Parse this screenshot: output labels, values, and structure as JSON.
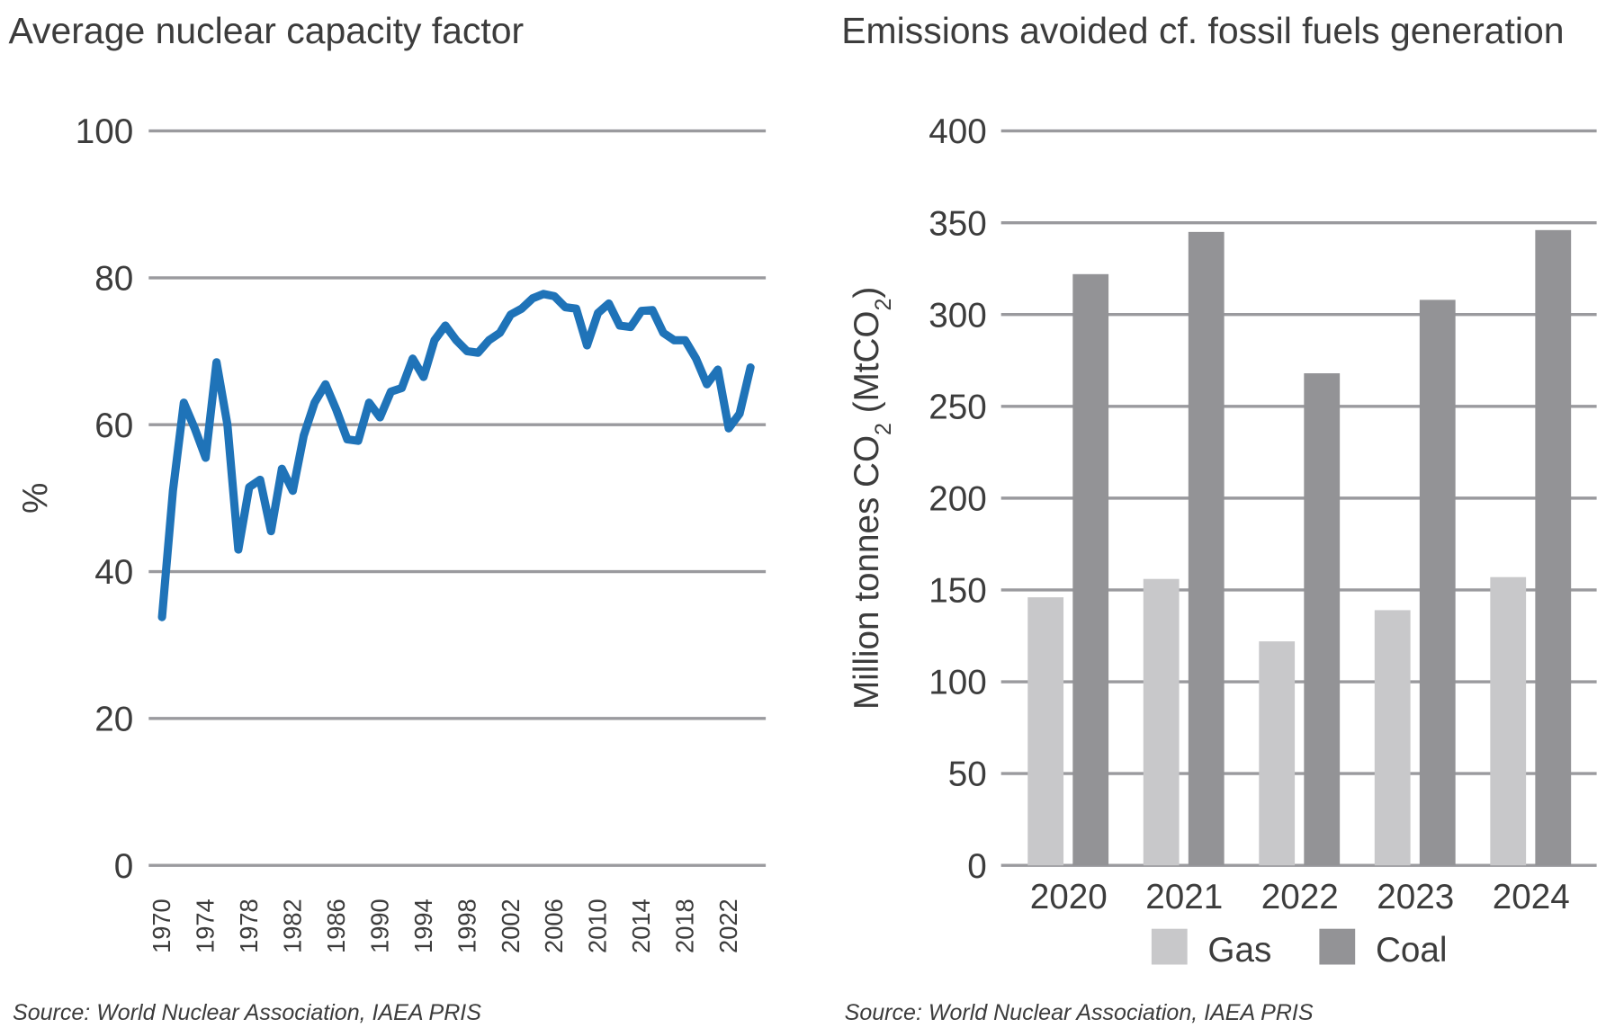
{
  "chart_data": [
    {
      "type": "line",
      "title": "Average nuclear capacity factor",
      "ylabel": "%",
      "xlabel": "",
      "ylim": [
        0,
        100
      ],
      "yticks": [
        0,
        20,
        40,
        60,
        80,
        100
      ],
      "xticks": [
        1970,
        1974,
        1978,
        1982,
        1986,
        1990,
        1994,
        1998,
        2002,
        2006,
        2010,
        2014,
        2018,
        2022
      ],
      "grid": "horizontal",
      "line_color": "#1f73b8",
      "source": "Source: World Nuclear Association, IAEA PRIS",
      "x": [
        1970,
        1971,
        1972,
        1973,
        1974,
        1975,
        1976,
        1977,
        1978,
        1979,
        1980,
        1981,
        1982,
        1983,
        1984,
        1985,
        1986,
        1987,
        1988,
        1989,
        1990,
        1991,
        1992,
        1993,
        1994,
        1995,
        1996,
        1997,
        1998,
        1999,
        2000,
        2001,
        2002,
        2003,
        2004,
        2005,
        2006,
        2007,
        2008,
        2009,
        2010,
        2011,
        2012,
        2013,
        2014,
        2015,
        2016,
        2017,
        2018,
        2019,
        2020,
        2021,
        2022,
        2023,
        2024
      ],
      "y": [
        33.8,
        51,
        63,
        59.5,
        55.5,
        68.5,
        60,
        43,
        51.5,
        52.5,
        45.5,
        54,
        51,
        58.5,
        63,
        65.5,
        62,
        58,
        57.8,
        63,
        61,
        64.5,
        65,
        69,
        66.5,
        71.5,
        73.5,
        71.5,
        70,
        69.8,
        71.5,
        72.5,
        75,
        75.8,
        77.2,
        77.8,
        77.5,
        76,
        75.8,
        70.8,
        75.2,
        76.5,
        73.5,
        73.3,
        75.5,
        75.6,
        72.5,
        71.5,
        71.5,
        69,
        65.5,
        67.5,
        59.5,
        61.5,
        67.8
      ]
    },
    {
      "type": "bar",
      "title": "Emissions avoided cf. fossil fuels generation",
      "ylabel": {
        "pre": "Million tonnes CO",
        "sub1": "2",
        "mid": " (MtCO",
        "sub2": "2",
        "post": ")"
      },
      "xlabel": "",
      "ylim": [
        0,
        400
      ],
      "yticks": [
        0,
        50,
        100,
        150,
        200,
        250,
        300,
        350,
        400
      ],
      "categories": [
        "2020",
        "2021",
        "2022",
        "2023",
        "2024"
      ],
      "grid": "horizontal",
      "legend_position": "bottom",
      "series": [
        {
          "name": "Gas",
          "color": "#c8c8ca",
          "values": [
            146,
            156,
            122,
            139,
            157
          ]
        },
        {
          "name": "Coal",
          "color": "#939396",
          "values": [
            322,
            345,
            268,
            308,
            346
          ]
        }
      ],
      "source": "Source: World Nuclear Association, IAEA PRIS"
    }
  ]
}
